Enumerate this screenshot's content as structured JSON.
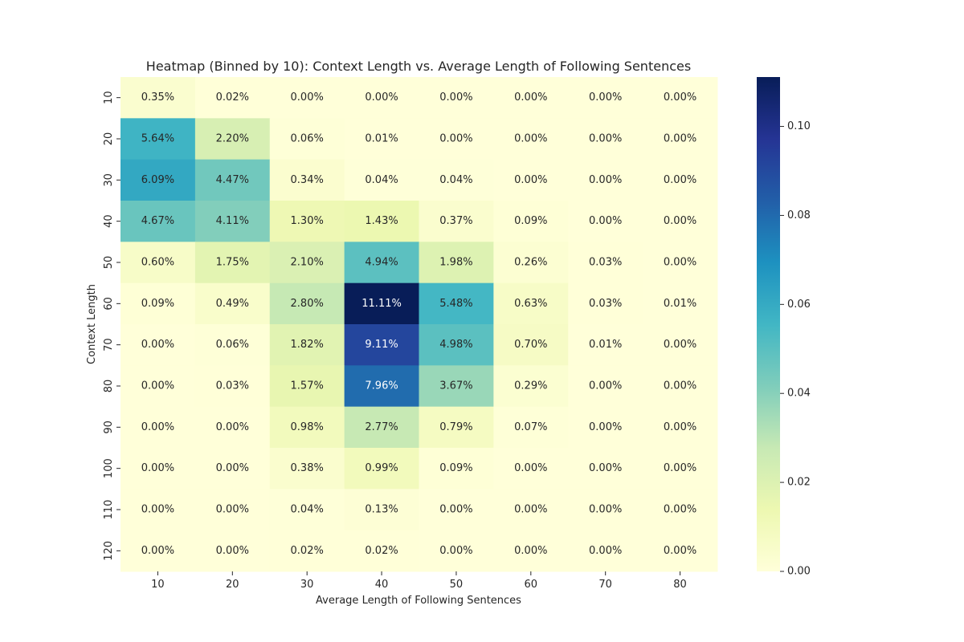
{
  "chart_data": {
    "type": "heatmap",
    "title": "Heatmap (Binned by 10): Context Length vs. Average Length of Following Sentences",
    "xlabel": "Average Length of Following Sentences",
    "ylabel": "Context Length",
    "x_categories": [
      "10",
      "20",
      "30",
      "40",
      "50",
      "60",
      "70",
      "80"
    ],
    "y_categories": [
      "10",
      "20",
      "30",
      "40",
      "50",
      "60",
      "70",
      "80",
      "90",
      "100",
      "110",
      "120"
    ],
    "values": [
      [
        0.0035,
        0.0002,
        0.0,
        0.0,
        0.0,
        0.0,
        0.0,
        0.0
      ],
      [
        0.0564,
        0.022,
        0.0006,
        0.0001,
        0.0,
        0.0,
        0.0,
        0.0
      ],
      [
        0.0609,
        0.0447,
        0.0034,
        0.0004,
        0.0004,
        0.0,
        0.0,
        0.0
      ],
      [
        0.0467,
        0.0411,
        0.013,
        0.0143,
        0.0037,
        0.0009,
        0.0,
        0.0
      ],
      [
        0.006,
        0.0175,
        0.021,
        0.0494,
        0.0198,
        0.0026,
        0.0003,
        0.0
      ],
      [
        0.0009,
        0.0049,
        0.028,
        0.1111,
        0.0548,
        0.0063,
        0.0003,
        0.0001
      ],
      [
        0.0,
        0.0006,
        0.0182,
        0.0911,
        0.0498,
        0.007,
        0.0001,
        0.0
      ],
      [
        0.0,
        0.0003,
        0.0157,
        0.0796,
        0.0367,
        0.0029,
        0.0,
        0.0
      ],
      [
        0.0,
        0.0,
        0.0098,
        0.0277,
        0.0079,
        0.0007,
        0.0,
        0.0
      ],
      [
        0.0,
        0.0,
        0.0038,
        0.0099,
        0.0009,
        0.0,
        0.0,
        0.0
      ],
      [
        0.0,
        0.0,
        0.0004,
        0.0013,
        0.0,
        0.0,
        0.0,
        0.0
      ],
      [
        0.0,
        0.0,
        0.0002,
        0.0002,
        0.0,
        0.0,
        0.0,
        0.0
      ]
    ],
    "annotations": [
      [
        "0.35%",
        "0.02%",
        "0.00%",
        "0.00%",
        "0.00%",
        "0.00%",
        "0.00%",
        "0.00%"
      ],
      [
        "5.64%",
        "2.20%",
        "0.06%",
        "0.01%",
        "0.00%",
        "0.00%",
        "0.00%",
        "0.00%"
      ],
      [
        "6.09%",
        "4.47%",
        "0.34%",
        "0.04%",
        "0.04%",
        "0.00%",
        "0.00%",
        "0.00%"
      ],
      [
        "4.67%",
        "4.11%",
        "1.30%",
        "1.43%",
        "0.37%",
        "0.09%",
        "0.00%",
        "0.00%"
      ],
      [
        "0.60%",
        "1.75%",
        "2.10%",
        "4.94%",
        "1.98%",
        "0.26%",
        "0.03%",
        "0.00%"
      ],
      [
        "0.09%",
        "0.49%",
        "2.80%",
        "11.11%",
        "5.48%",
        "0.63%",
        "0.03%",
        "0.01%"
      ],
      [
        "0.00%",
        "0.06%",
        "1.82%",
        "9.11%",
        "4.98%",
        "0.70%",
        "0.01%",
        "0.00%"
      ],
      [
        "0.00%",
        "0.03%",
        "1.57%",
        "7.96%",
        "3.67%",
        "0.29%",
        "0.00%",
        "0.00%"
      ],
      [
        "0.00%",
        "0.00%",
        "0.98%",
        "2.77%",
        "0.79%",
        "0.07%",
        "0.00%",
        "0.00%"
      ],
      [
        "0.00%",
        "0.00%",
        "0.38%",
        "0.99%",
        "0.09%",
        "0.00%",
        "0.00%",
        "0.00%"
      ],
      [
        "0.00%",
        "0.00%",
        "0.04%",
        "0.13%",
        "0.00%",
        "0.00%",
        "0.00%",
        "0.00%"
      ],
      [
        "0.00%",
        "0.00%",
        "0.02%",
        "0.02%",
        "0.00%",
        "0.00%",
        "0.00%",
        "0.00%"
      ]
    ],
    "colormap": "YlGnBu",
    "colormap_stops": [
      "#ffffd9",
      "#edf8b1",
      "#c7e9b4",
      "#7fcdbb",
      "#41b6c4",
      "#1d91c0",
      "#225ea8",
      "#253494",
      "#081d58"
    ],
    "color_range": [
      0,
      0.1111
    ],
    "colorbar_ticks": [
      "0.00",
      "0.02",
      "0.04",
      "0.06",
      "0.08",
      "0.10"
    ],
    "colorbar_tick_values": [
      0,
      0.02,
      0.04,
      0.06,
      0.08,
      0.1
    ]
  }
}
